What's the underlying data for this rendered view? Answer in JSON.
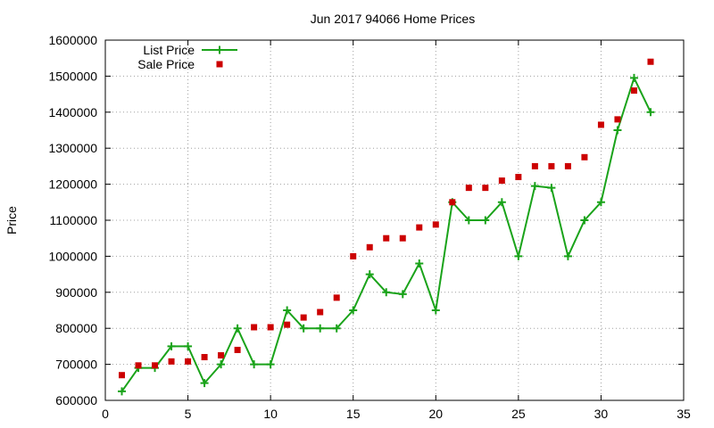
{
  "chart_data": {
    "type": "line",
    "title": "Jun 2017 94066 Home Prices",
    "xlabel": "",
    "ylabel": "Price",
    "xlim": [
      0,
      35
    ],
    "ylim": [
      600000,
      1600000
    ],
    "x_ticks": [
      0,
      5,
      10,
      15,
      20,
      25,
      30,
      35
    ],
    "y_ticks": [
      600000,
      700000,
      800000,
      900000,
      1000000,
      1100000,
      1200000,
      1300000,
      1400000,
      1500000,
      1600000
    ],
    "grid": true,
    "legend_position": "top-left",
    "x": [
      1,
      2,
      3,
      4,
      5,
      6,
      7,
      8,
      9,
      10,
      11,
      12,
      13,
      14,
      15,
      16,
      17,
      18,
      19,
      20,
      21,
      22,
      23,
      24,
      25,
      26,
      27,
      28,
      29,
      30,
      31,
      32,
      33
    ],
    "series": [
      {
        "name": "List Price",
        "style": "linespoints",
        "marker": "plus",
        "color": "#1aa31a",
        "values": [
          625000,
          690000,
          690000,
          750000,
          750000,
          648000,
          700000,
          800000,
          700000,
          700000,
          850000,
          800000,
          800000,
          800000,
          850000,
          950000,
          900000,
          895000,
          980000,
          850000,
          1150000,
          1100000,
          1100000,
          1150000,
          1000000,
          1195000,
          1190000,
          1000000,
          1100000,
          1150000,
          1350000,
          1495000,
          1400000
        ]
      },
      {
        "name": "Sale Price",
        "style": "points",
        "marker": "square",
        "color": "#cc0000",
        "values": [
          670000,
          697000,
          697000,
          708000,
          708000,
          720000,
          725000,
          740000,
          803000,
          803000,
          810000,
          830000,
          845000,
          885000,
          1000000,
          1025000,
          1050000,
          1050000,
          1080000,
          1088000,
          1150000,
          1190000,
          1190000,
          1210000,
          1220000,
          1250000,
          1250000,
          1250000,
          1275000,
          1365000,
          1380000,
          1460000,
          1540000
        ]
      }
    ]
  }
}
